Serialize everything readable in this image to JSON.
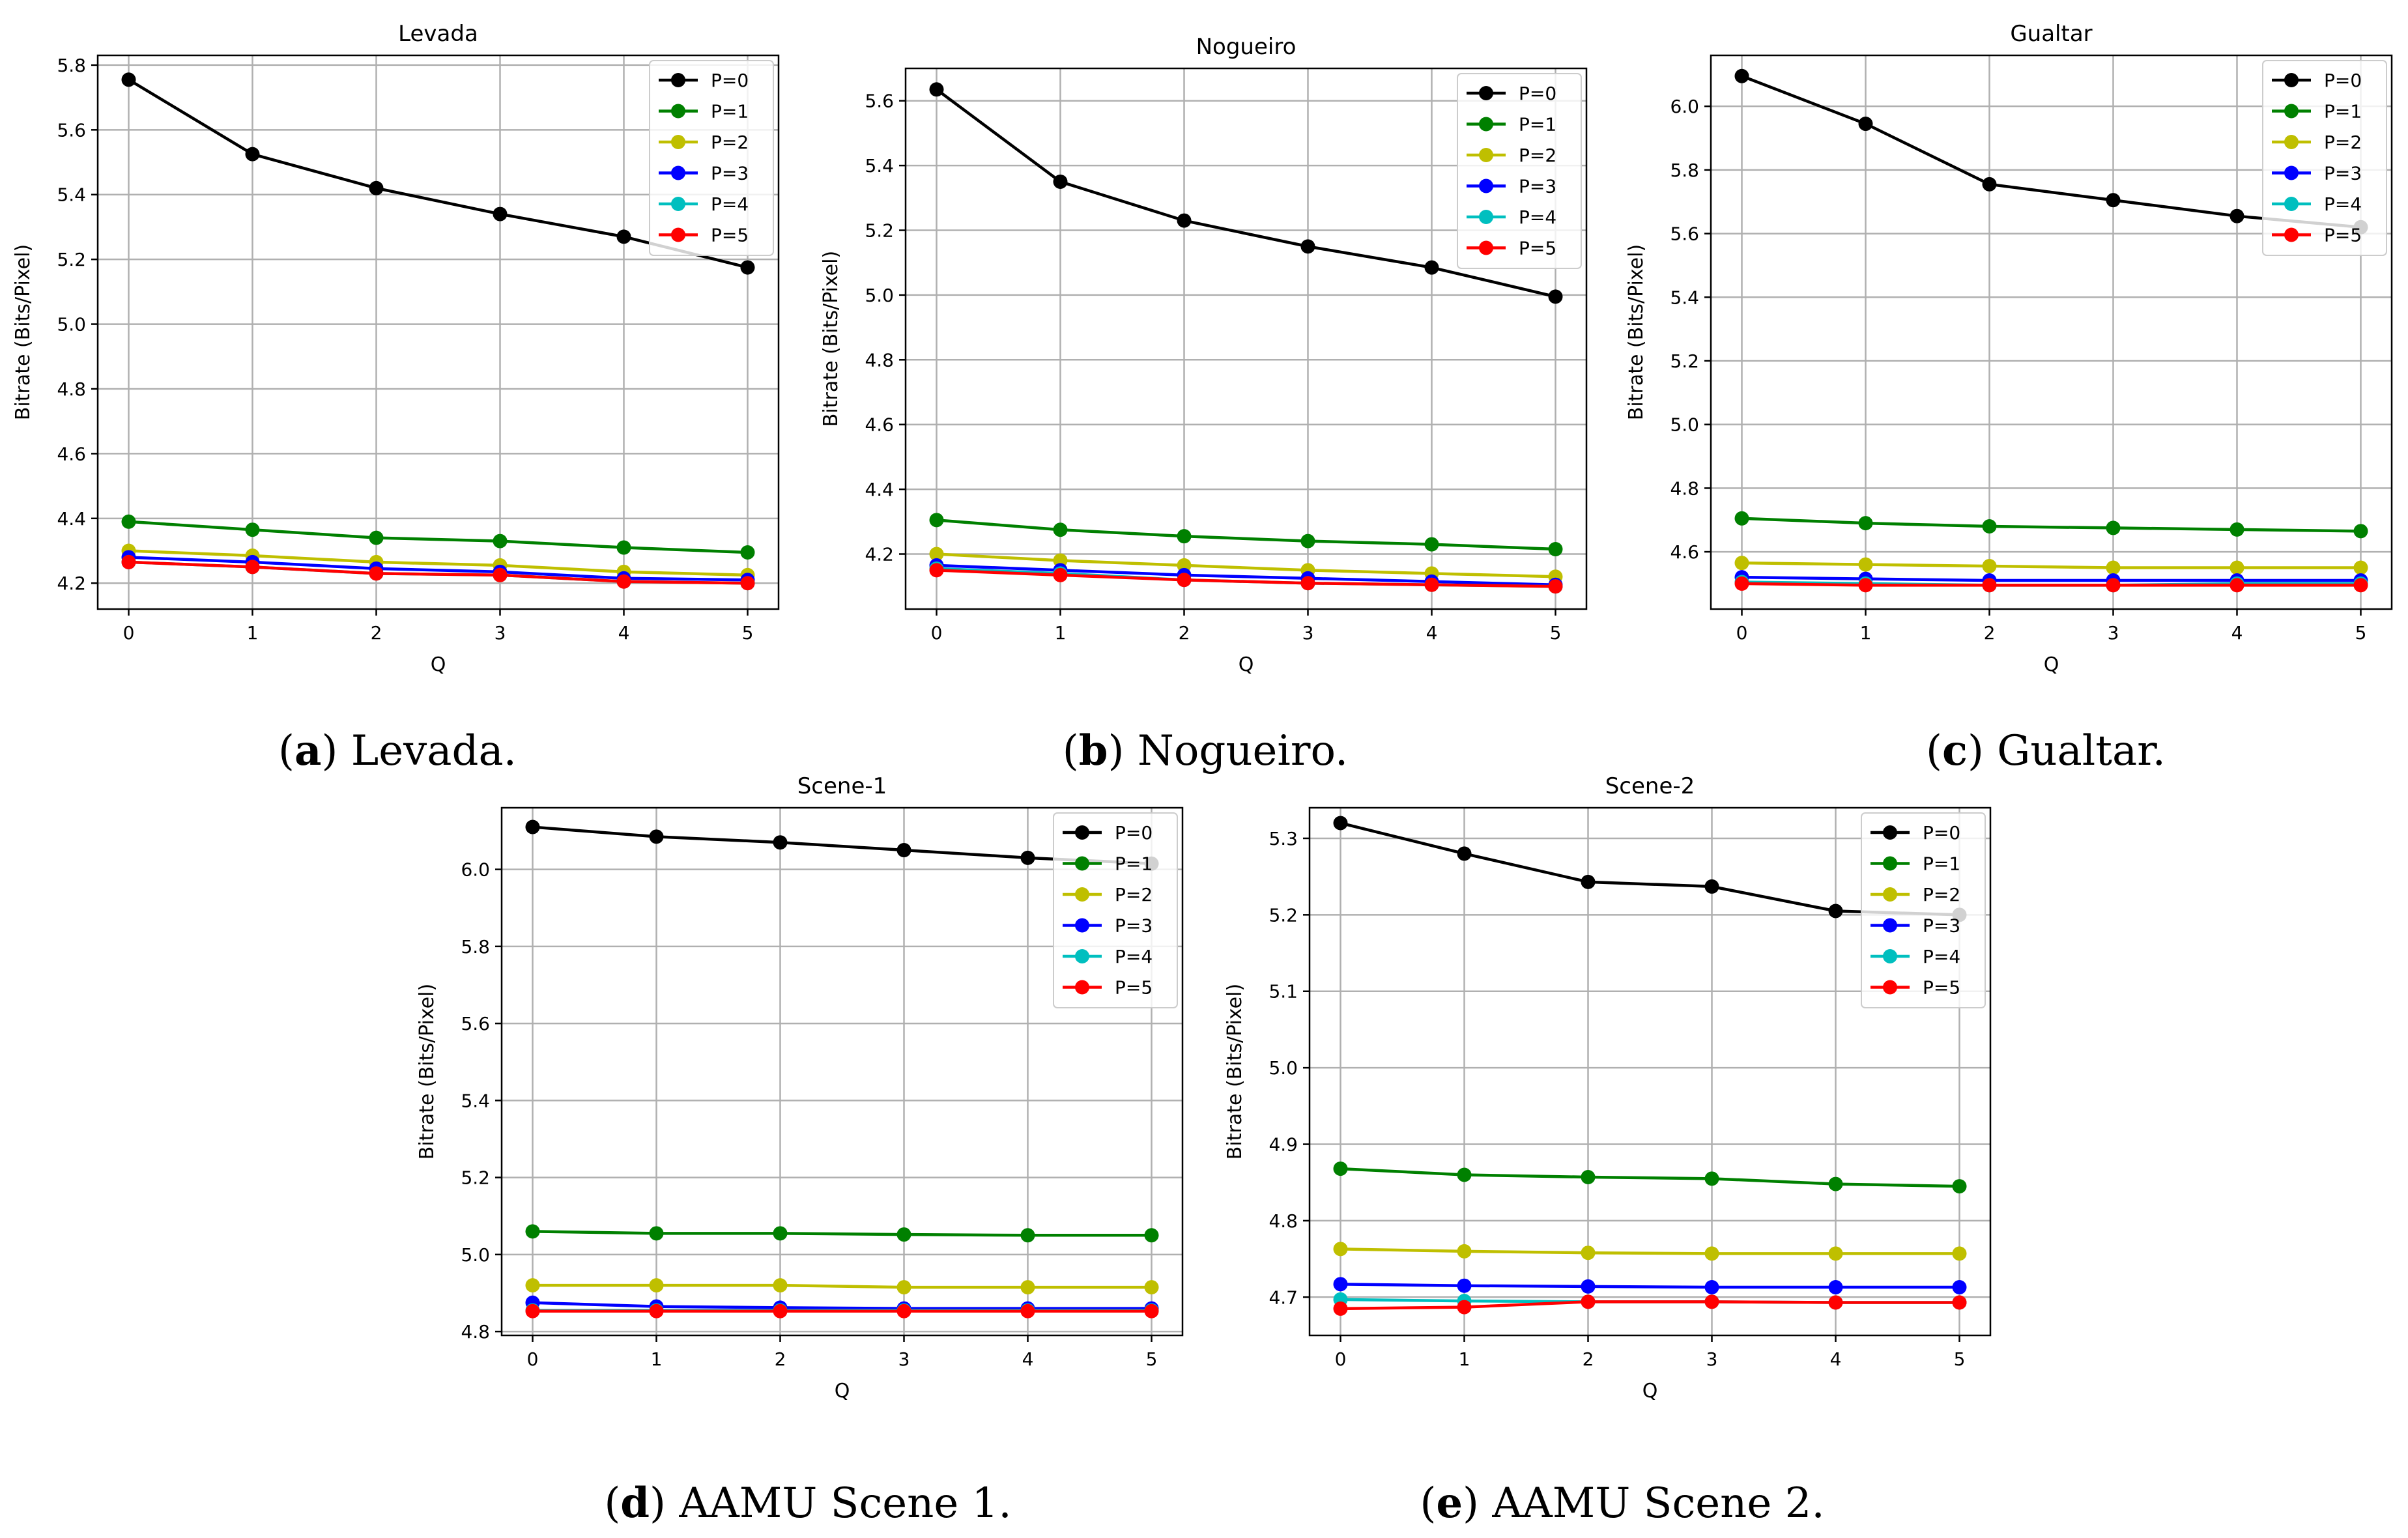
{
  "colors": {
    "P=0": "#000000",
    "P=1": "#008000",
    "P=2": "#bfbf00",
    "P=3": "#0000ff",
    "P=4": "#00bfbf",
    "P=5": "#ff0000",
    "grid": "#b0b0b0",
    "axis": "#000000"
  },
  "chart_data": [
    {
      "type": "line",
      "title": "Levada",
      "xlabel": "Q",
      "ylabel": "Bitrate (Bits/Pixel)",
      "x": [
        0,
        1,
        2,
        3,
        4,
        5
      ],
      "xlim": [
        -0.25,
        5.25
      ],
      "ylim": [
        4.12,
        5.83
      ],
      "yticks": [
        "4.2",
        "4.4",
        "4.6",
        "4.8",
        "5.0",
        "5.2",
        "5.4",
        "5.6",
        "5.8"
      ],
      "xticks": [
        "0",
        "1",
        "2",
        "3",
        "4",
        "5"
      ],
      "legend_position": "top-right",
      "series": [
        {
          "name": "P=0",
          "values": [
            5.755,
            5.525,
            5.42,
            5.34,
            5.27,
            5.175
          ]
        },
        {
          "name": "P=1",
          "values": [
            4.39,
            4.365,
            4.34,
            4.33,
            4.31,
            4.295
          ]
        },
        {
          "name": "P=2",
          "values": [
            4.3,
            4.285,
            4.265,
            4.255,
            4.235,
            4.225
          ]
        },
        {
          "name": "P=3",
          "values": [
            4.28,
            4.265,
            4.245,
            4.235,
            4.215,
            4.21
          ]
        },
        {
          "name": "P=4",
          "values": [
            4.265,
            4.25,
            4.23,
            4.225,
            4.205,
            4.2
          ]
        },
        {
          "name": "P=5",
          "values": [
            4.265,
            4.25,
            4.23,
            4.225,
            4.205,
            4.2
          ]
        }
      ],
      "caption": {
        "letter": "a",
        "text": " Levada."
      }
    },
    {
      "type": "line",
      "title": "Nogueiro",
      "xlabel": "Q",
      "ylabel": "Bitrate (Bits/Pixel)",
      "x": [
        0,
        1,
        2,
        3,
        4,
        5
      ],
      "xlim": [
        -0.25,
        5.25
      ],
      "ylim": [
        4.03,
        5.7
      ],
      "yticks": [
        "4.2",
        "4.4",
        "4.6",
        "4.8",
        "5.0",
        "5.2",
        "5.4",
        "5.6"
      ],
      "xticks": [
        "0",
        "1",
        "2",
        "3",
        "4",
        "5"
      ],
      "legend_position": "top-right",
      "series": [
        {
          "name": "P=0",
          "values": [
            5.635,
            5.35,
            5.23,
            5.15,
            5.085,
            4.995
          ]
        },
        {
          "name": "P=1",
          "values": [
            4.305,
            4.275,
            4.255,
            4.24,
            4.23,
            4.215
          ]
        },
        {
          "name": "P=2",
          "values": [
            4.2,
            4.18,
            4.165,
            4.15,
            4.14,
            4.13
          ]
        },
        {
          "name": "P=3",
          "values": [
            4.165,
            4.15,
            4.135,
            4.125,
            4.115,
            4.105
          ]
        },
        {
          "name": "P=4",
          "values": [
            4.155,
            4.14,
            4.12,
            4.11,
            4.105,
            4.1
          ]
        },
        {
          "name": "P=5",
          "values": [
            4.15,
            4.135,
            4.12,
            4.11,
            4.105,
            4.1
          ]
        }
      ],
      "caption": {
        "letter": "b",
        "text": " Nogueiro."
      }
    },
    {
      "type": "line",
      "title": "Gualtar",
      "xlabel": "Q",
      "ylabel": "Bitrate (Bits/Pixel)",
      "x": [
        0,
        1,
        2,
        3,
        4,
        5
      ],
      "xlim": [
        -0.25,
        5.25
      ],
      "ylim": [
        4.42,
        6.16
      ],
      "yticks": [
        "4.6",
        "4.8",
        "5.0",
        "5.2",
        "5.4",
        "5.6",
        "5.8",
        "6.0"
      ],
      "xticks": [
        "0",
        "1",
        "2",
        "3",
        "4",
        "5"
      ],
      "legend_position": "top-right",
      "series": [
        {
          "name": "P=0",
          "values": [
            6.095,
            5.945,
            5.755,
            5.705,
            5.655,
            5.62
          ]
        },
        {
          "name": "P=1",
          "values": [
            4.705,
            4.69,
            4.68,
            4.675,
            4.67,
            4.665
          ]
        },
        {
          "name": "P=2",
          "values": [
            4.565,
            4.56,
            4.555,
            4.55,
            4.55,
            4.55
          ]
        },
        {
          "name": "P=3",
          "values": [
            4.52,
            4.515,
            4.51,
            4.51,
            4.51,
            4.51
          ]
        },
        {
          "name": "P=4",
          "values": [
            4.505,
            4.5,
            4.495,
            4.495,
            4.5,
            4.5
          ]
        },
        {
          "name": "P=5",
          "values": [
            4.5,
            4.495,
            4.495,
            4.495,
            4.495,
            4.495
          ]
        }
      ],
      "caption": {
        "letter": "c",
        "text": " Gualtar."
      }
    },
    {
      "type": "line",
      "title": "Scene-1",
      "xlabel": "Q",
      "ylabel": "Bitrate (Bits/Pixel)",
      "x": [
        0,
        1,
        2,
        3,
        4,
        5
      ],
      "xlim": [
        -0.25,
        5.25
      ],
      "ylim": [
        4.79,
        6.16
      ],
      "yticks": [
        "4.8",
        "5.0",
        "5.2",
        "5.4",
        "5.6",
        "5.8",
        "6.0"
      ],
      "xticks": [
        "0",
        "1",
        "2",
        "3",
        "4",
        "5"
      ],
      "legend_position": "top-right",
      "series": [
        {
          "name": "P=0",
          "values": [
            6.11,
            6.085,
            6.07,
            6.05,
            6.03,
            6.015
          ]
        },
        {
          "name": "P=1",
          "values": [
            5.06,
            5.055,
            5.055,
            5.052,
            5.05,
            5.05
          ]
        },
        {
          "name": "P=2",
          "values": [
            4.92,
            4.92,
            4.92,
            4.915,
            4.915,
            4.915
          ]
        },
        {
          "name": "P=3",
          "values": [
            4.875,
            4.865,
            4.862,
            4.86,
            4.86,
            4.86
          ]
        },
        {
          "name": "P=4",
          "values": [
            4.855,
            4.855,
            4.855,
            4.855,
            4.855,
            4.855
          ]
        },
        {
          "name": "P=5",
          "values": [
            4.853,
            4.853,
            4.853,
            4.853,
            4.853,
            4.853
          ]
        }
      ],
      "caption": {
        "letter": "d",
        "text": " AAMU Scene 1."
      }
    },
    {
      "type": "line",
      "title": "Scene-2",
      "xlabel": "Q",
      "ylabel": "Bitrate (Bits/Pixel)",
      "x": [
        0,
        1,
        2,
        3,
        4,
        5
      ],
      "xlim": [
        -0.25,
        5.25
      ],
      "ylim": [
        4.65,
        5.34
      ],
      "yticks": [
        "4.7",
        "4.8",
        "4.9",
        "5.0",
        "5.1",
        "5.2",
        "5.3"
      ],
      "xticks": [
        "0",
        "1",
        "2",
        "3",
        "4",
        "5"
      ],
      "legend_position": "top-right",
      "series": [
        {
          "name": "P=0",
          "values": [
            5.32,
            5.28,
            5.243,
            5.237,
            5.205,
            5.2
          ]
        },
        {
          "name": "P=1",
          "values": [
            4.868,
            4.86,
            4.857,
            4.855,
            4.848,
            4.845
          ]
        },
        {
          "name": "P=2",
          "values": [
            4.763,
            4.76,
            4.758,
            4.757,
            4.757,
            4.757
          ]
        },
        {
          "name": "P=3",
          "values": [
            4.717,
            4.715,
            4.714,
            4.713,
            4.713,
            4.713
          ]
        },
        {
          "name": "P=4",
          "values": [
            4.697,
            4.695,
            4.694,
            4.694,
            4.693,
            4.693
          ]
        },
        {
          "name": "P=5",
          "values": [
            4.685,
            4.687,
            4.694,
            4.694,
            4.693,
            4.693
          ]
        }
      ],
      "caption": {
        "letter": "e",
        "text": " AAMU Scene 2."
      }
    }
  ]
}
